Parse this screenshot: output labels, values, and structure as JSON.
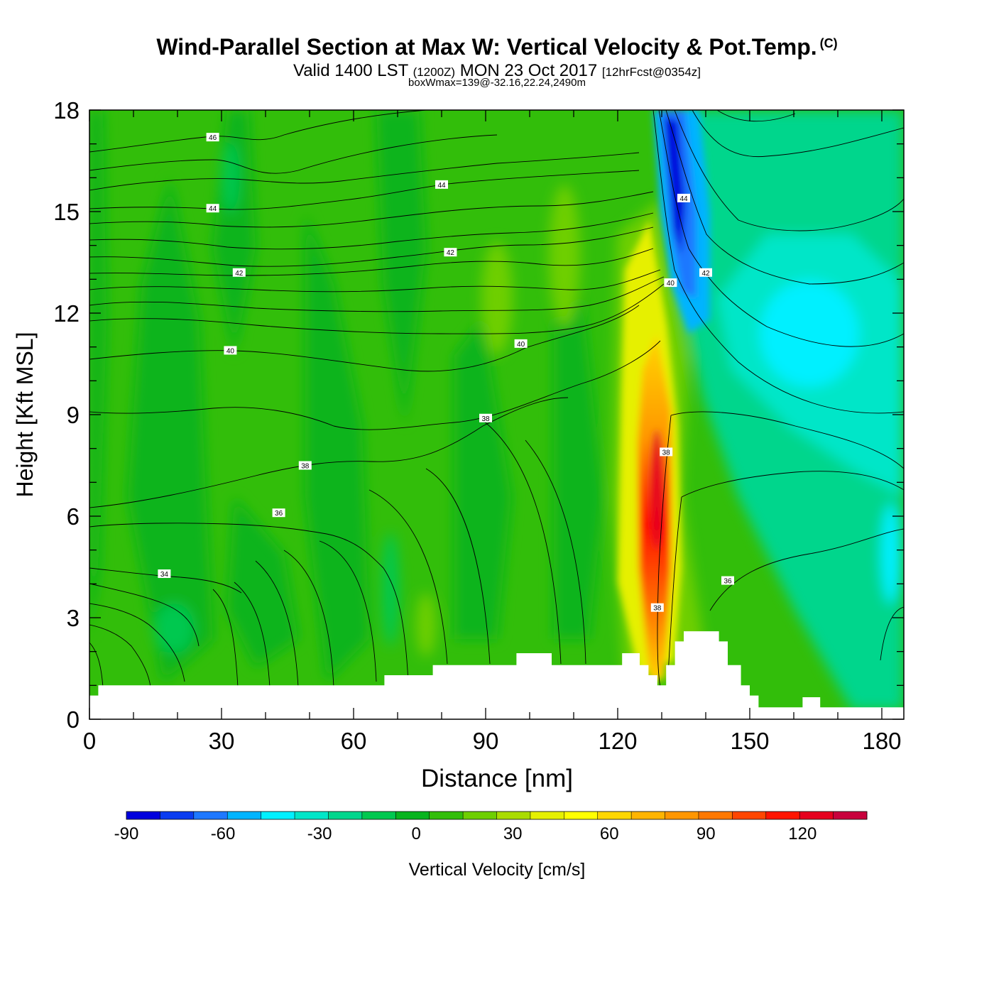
{
  "header": {
    "title": "Wind-Parallel Section at Max W: Vertical Velocity & Pot.Temp.",
    "copyright": "(C)",
    "subtitle_a": "Valid 1400 LST",
    "subtitle_b": "(1200Z)",
    "subtitle_c": "MON 23 Oct 2017",
    "subtitle_d": "[12hrFcst@0354z]",
    "subtitle2": "boxWmax=139@-32.16,22.24,2490m"
  },
  "chart_data": {
    "type": "heatmap",
    "xlabel": "Distance [nm]",
    "ylabel": "Height [Kft MSL]",
    "xlim": [
      0,
      185
    ],
    "ylim": [
      0,
      18
    ],
    "x_ticks": [
      "0",
      "30",
      "60",
      "90",
      "120",
      "150",
      "180"
    ],
    "y_ticks": [
      "0",
      "3",
      "6",
      "9",
      "12",
      "15",
      "18"
    ],
    "colorbar": {
      "label": "Vertical Velocity [cm/s]",
      "range": [
        -90,
        140
      ],
      "tick_labels": [
        "-90",
        "-60",
        "-30",
        "0",
        "30",
        "60",
        "90",
        "120"
      ],
      "colors": [
        "#0000dd",
        "#0a3cf0",
        "#1e78ff",
        "#00b4ff",
        "#00f0ff",
        "#00e6c8",
        "#00d68c",
        "#00c850",
        "#08b41e",
        "#32be0a",
        "#6ecf00",
        "#aadc00",
        "#e6f000",
        "#ffff00",
        "#ffd700",
        "#ffb400",
        "#ff9600",
        "#ff7800",
        "#ff4600",
        "#ff1400",
        "#e6001e",
        "#c8003c"
      ]
    },
    "max_w": {
      "value_cm_s": 139,
      "lat": -32.16,
      "lon": 22.24,
      "height_m": 2490
    },
    "theta_contour_labels": [
      {
        "x": 28,
        "y": 17.2,
        "label": "46"
      },
      {
        "x": 28,
        "y": 15.1,
        "label": "44"
      },
      {
        "x": 80,
        "y": 15.8,
        "label": "44"
      },
      {
        "x": 135,
        "y": 15.4,
        "label": "44"
      },
      {
        "x": 34,
        "y": 13.2,
        "label": "42"
      },
      {
        "x": 82,
        "y": 13.8,
        "label": "42"
      },
      {
        "x": 140,
        "y": 13.2,
        "label": "42"
      },
      {
        "x": 132,
        "y": 12.9,
        "label": "40"
      },
      {
        "x": 32,
        "y": 10.9,
        "label": "40"
      },
      {
        "x": 98,
        "y": 11.1,
        "label": "40"
      },
      {
        "x": 90,
        "y": 8.9,
        "label": "38"
      },
      {
        "x": 49,
        "y": 7.5,
        "label": "38"
      },
      {
        "x": 131,
        "y": 7.9,
        "label": "38"
      },
      {
        "x": 43,
        "y": 6.1,
        "label": "36"
      },
      {
        "x": 145,
        "y": 4.1,
        "label": "36"
      },
      {
        "x": 17,
        "y": 4.3,
        "label": "34"
      },
      {
        "x": 129,
        "y": 3.3,
        "label": "38"
      }
    ],
    "terrain_kft": [
      [
        0,
        0.7
      ],
      [
        2,
        0.7
      ],
      [
        2,
        1.0
      ],
      [
        67,
        1.0
      ],
      [
        67,
        1.3
      ],
      [
        78,
        1.3
      ],
      [
        78,
        1.6
      ],
      [
        97,
        1.6
      ],
      [
        97,
        1.95
      ],
      [
        105,
        1.95
      ],
      [
        105,
        1.6
      ],
      [
        121,
        1.6
      ],
      [
        121,
        1.95
      ],
      [
        125,
        1.95
      ],
      [
        125,
        1.6
      ],
      [
        127,
        1.6
      ],
      [
        127,
        1.3
      ],
      [
        129,
        1.3
      ],
      [
        129,
        1.0
      ],
      [
        131,
        1.0
      ],
      [
        131,
        1.6
      ],
      [
        133,
        1.6
      ],
      [
        133,
        2.3
      ],
      [
        135,
        2.3
      ],
      [
        135,
        2.6
      ],
      [
        143,
        2.6
      ],
      [
        143,
        2.3
      ],
      [
        145,
        2.3
      ],
      [
        145,
        1.6
      ],
      [
        148,
        1.6
      ],
      [
        148,
        1.0
      ],
      [
        150,
        1.0
      ],
      [
        150,
        0.7
      ],
      [
        152,
        0.7
      ],
      [
        152,
        0.35
      ],
      [
        162,
        0.35
      ],
      [
        162,
        0.65
      ],
      [
        166,
        0.65
      ],
      [
        166,
        0.35
      ],
      [
        185,
        0.35
      ]
    ]
  }
}
